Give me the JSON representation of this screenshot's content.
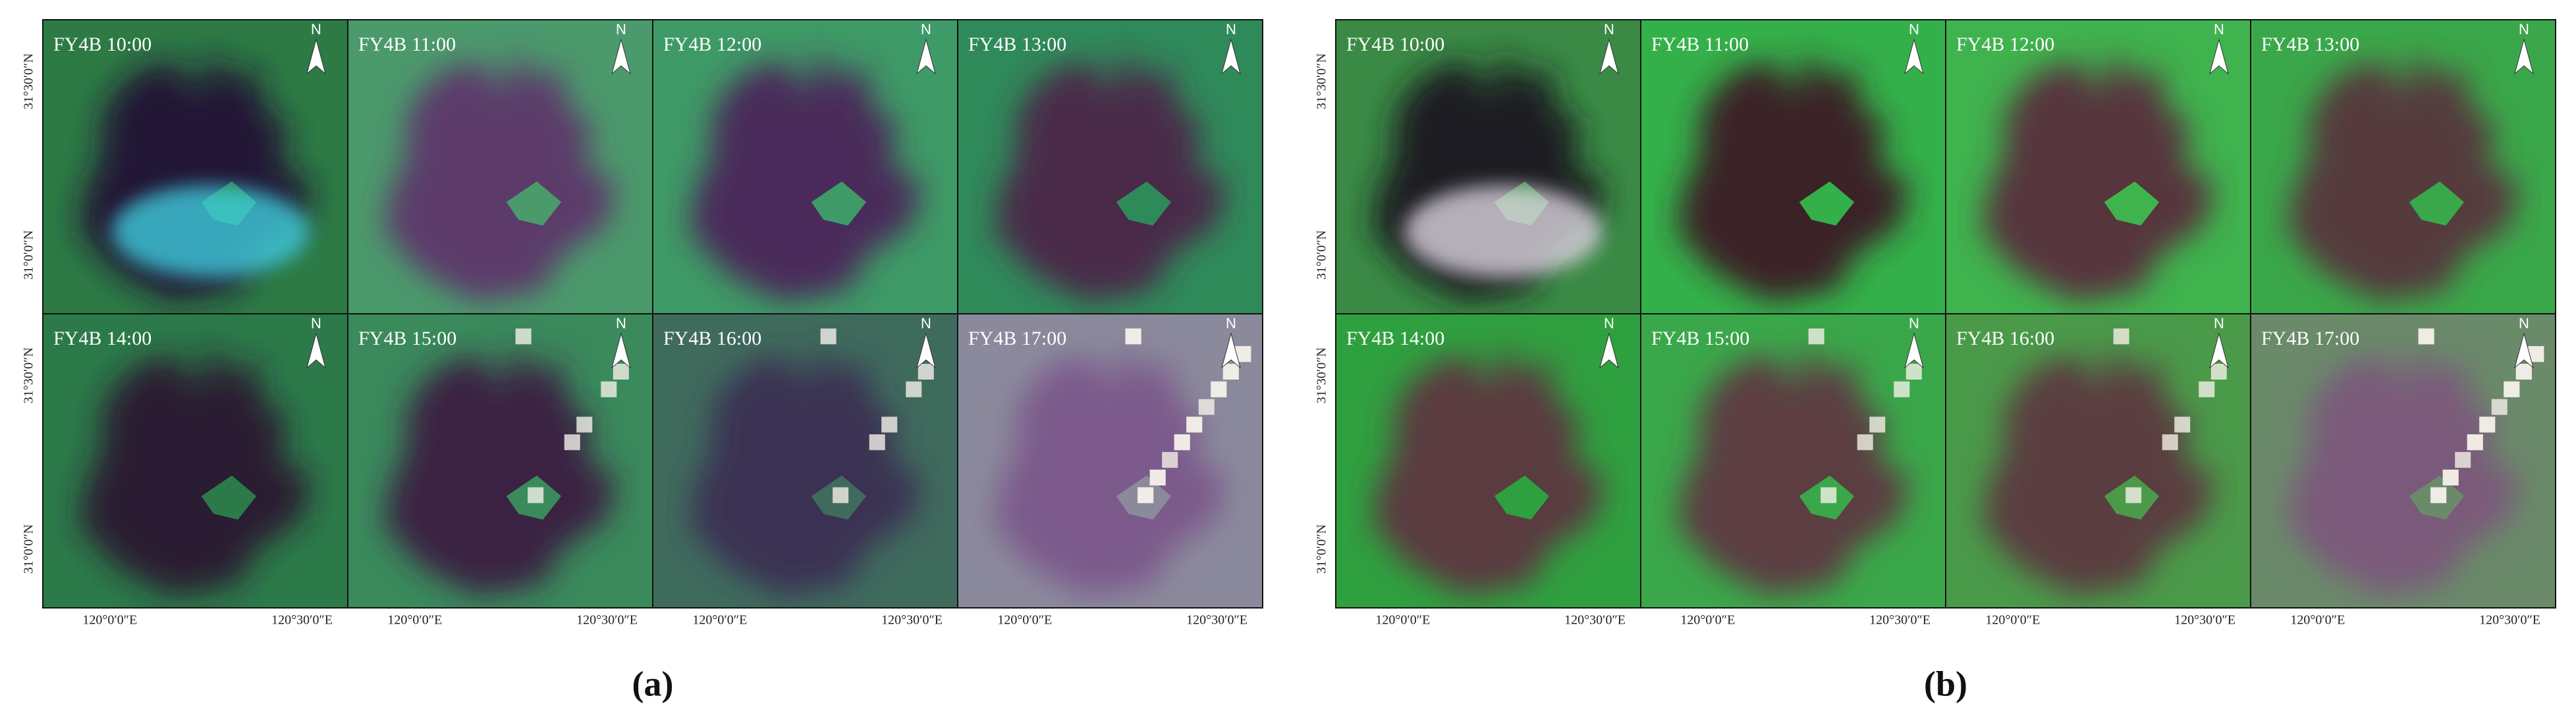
{
  "panels": [
    {
      "caption": "(a)",
      "images": [
        {
          "title": "FY4B 10:00"
        },
        {
          "title": "FY4B 11:00"
        },
        {
          "title": "FY4B 12:00"
        },
        {
          "title": "FY4B 13:00"
        },
        {
          "title": "FY4B 14:00"
        },
        {
          "title": "FY4B 15:00"
        },
        {
          "title": "FY4B 16:00"
        },
        {
          "title": "FY4B 17:00"
        }
      ]
    },
    {
      "caption": "(b)",
      "images": [
        {
          "title": "FY4B 10:00"
        },
        {
          "title": "FY4B 11:00"
        },
        {
          "title": "FY4B 12:00"
        },
        {
          "title": "FY4B 13:00"
        },
        {
          "title": "FY4B 14:00"
        },
        {
          "title": "FY4B 15:00"
        },
        {
          "title": "FY4B 16:00"
        },
        {
          "title": "FY4B 17:00"
        }
      ]
    }
  ],
  "north": "N",
  "y_labels": [
    "31°30′0″N",
    "31°0′0″N"
  ],
  "x_labels": [
    "120°0′0″E",
    "120°30′0″E"
  ]
}
